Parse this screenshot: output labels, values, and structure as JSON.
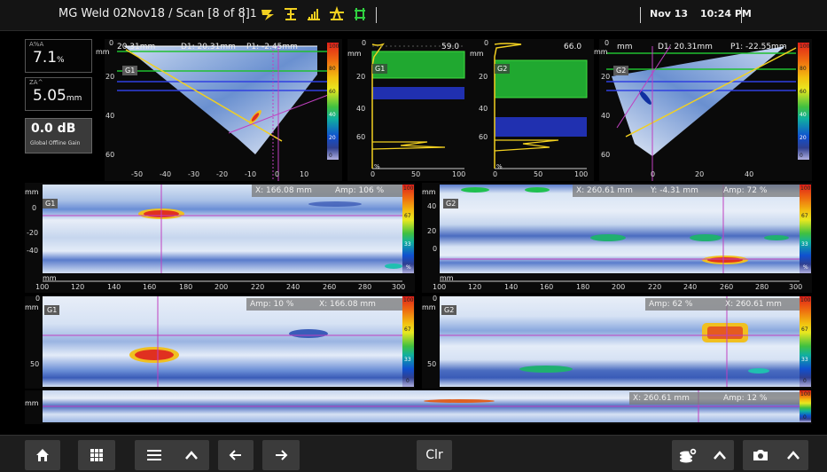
{
  "header": {
    "title": "MG Weld 02Nov18  / Scan  [8 of 8]",
    "cursor_number": "1",
    "date": "Nov 13",
    "time": "10:24 PM",
    "tool_icons": [
      "gate-icon",
      "measure-icon",
      "signal-icon",
      "peak-icon",
      "cursor-link-icon"
    ]
  },
  "readouts": {
    "a_pct_label": "A%A",
    "a_pct_value": "7.1",
    "a_pct_unit": "%",
    "za_label": "ZA^",
    "za_value": "5.05",
    "za_unit": "mm",
    "gain_value": "0.0 dB",
    "gain_label": "Global Offline Gain"
  },
  "sscan_left": {
    "cursor_label": "20.31mm",
    "d1": "D1: 20.31mm",
    "p1": "P1: -2.45mm",
    "gate": "G1",
    "unit": "mm",
    "yticks": [
      "0",
      "20",
      "40",
      "60"
    ],
    "xticks": [
      "-50",
      "-40",
      "-30",
      "-20",
      "-10",
      "0",
      "10"
    ],
    "cbar": [
      "100",
      "80",
      "60",
      "40",
      "20",
      "0"
    ]
  },
  "ascan_left": {
    "unit": "mm",
    "value": "59.0",
    "gate": "G1",
    "yticks": [
      "0",
      "20",
      "40",
      "60"
    ],
    "xticks": [
      "0",
      "50",
      "100"
    ],
    "xunit": "%"
  },
  "ascan_right": {
    "unit": "mm",
    "value": "66.0",
    "gate": "G2",
    "yticks": [
      "0",
      "20",
      "40",
      "60"
    ],
    "xticks": [
      "0",
      "50",
      "100"
    ],
    "xunit": "%"
  },
  "sscan_right": {
    "cursor_label": "mm",
    "d1": "D1: 20.31mm",
    "p1": "P1: -22.55mm",
    "gate": "G2",
    "unit": "mm",
    "yticks": [
      "0",
      "20",
      "40",
      "60"
    ],
    "xticks": [
      "0",
      "20",
      "40"
    ],
    "cbar": [
      "100",
      "80",
      "60",
      "40",
      "20",
      "0"
    ]
  },
  "cscan_left": {
    "x": "X: 166.08 mm",
    "amp": "Amp: 106 %",
    "gate": "G1",
    "unit": "mm",
    "yticks": [
      "0",
      "-20",
      "-40"
    ],
    "cbar": [
      "100",
      "67",
      "33",
      "%"
    ]
  },
  "cscan_right": {
    "x": "X: 260.61 mm",
    "y": "Y: -4.31 mm",
    "amp": "Amp: 72 %",
    "gate": "G2",
    "unit": "mm",
    "yticks": [
      "40",
      "20",
      "0"
    ],
    "cbar": [
      "100",
      "67",
      "33",
      "%"
    ]
  },
  "axis_left": {
    "unit": "mm",
    "ticks": [
      "100",
      "120",
      "140",
      "160",
      "180",
      "200",
      "220",
      "240",
      "260",
      "280",
      "300"
    ]
  },
  "axis_right": {
    "unit": "mm",
    "ticks": [
      "100",
      "120",
      "140",
      "160",
      "180",
      "200",
      "220",
      "240",
      "260",
      "280",
      "300"
    ]
  },
  "bscan_left": {
    "amp": "Amp: 10 %",
    "x": "X: 166.08 mm",
    "gate": "G1",
    "unit": "mm",
    "yticks": [
      "0",
      "50"
    ],
    "cbar": [
      "100",
      "67",
      "33",
      "0"
    ]
  },
  "bscan_right": {
    "amp": "Amp: 62 %",
    "x": "X: 260.61 mm",
    "gate": "G2",
    "unit": "mm",
    "yticks": [
      "0",
      "50"
    ],
    "cbar": [
      "100",
      "67",
      "33",
      "0"
    ]
  },
  "strip": {
    "x": "X: 260.61 mm",
    "amp": "Amp: 12 %",
    "unit": "mm",
    "cbar": [
      "100",
      "0"
    ]
  },
  "toolbar": {
    "home_icon": "home-icon",
    "apps_icon": "grid-icon",
    "menu_icon": "menu-icon",
    "up_icon": "chevron-up-icon",
    "left_icon": "arrow-left-icon",
    "right_icon": "arrow-right-icon",
    "clear_label": "Clr",
    "settings_icon": "settings-stack-icon",
    "camera_icon": "camera-icon"
  },
  "colors": {
    "accent_yellow": "#f2d020",
    "gate_green": "#20c030",
    "gate_blue": "#2030c0",
    "cursor_magenta": "#c040c0"
  }
}
